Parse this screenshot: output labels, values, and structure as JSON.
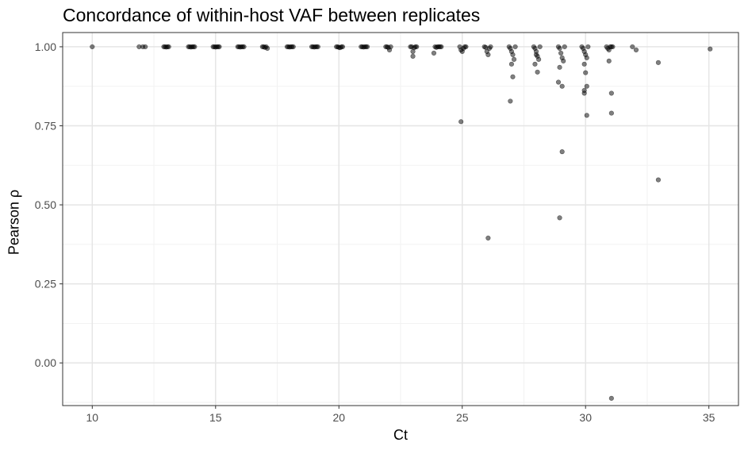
{
  "chart_data": {
    "type": "scatter",
    "title": "Concordance of within-host VAF between replicates",
    "xlabel": "Ct",
    "ylabel": "Pearson ρ",
    "xlim": [
      8.8,
      36.2
    ],
    "ylim": [
      -0.135,
      1.045
    ],
    "x_ticks": [
      10,
      15,
      20,
      25,
      30,
      35
    ],
    "y_ticks": [
      0.0,
      0.25,
      0.5,
      0.75,
      1.0
    ],
    "x_tick_labels": [
      "10",
      "15",
      "20",
      "25",
      "30",
      "35"
    ],
    "y_tick_labels": [
      "0.00",
      "0.25",
      "0.50",
      "0.75",
      "1.00"
    ],
    "grid": true,
    "theme": "bw",
    "point_color": "#000000",
    "point_alpha": 0.5,
    "points": [
      [
        10.0,
        1.0
      ],
      [
        11.9,
        1.0
      ],
      [
        12.05,
        1.0
      ],
      [
        12.15,
        1.0
      ],
      [
        12.95,
        1.0
      ],
      [
        13.0,
        0.999
      ],
      [
        13.05,
        1.0
      ],
      [
        13.1,
        1.0
      ],
      [
        12.9,
        1.0
      ],
      [
        13.9,
        1.0
      ],
      [
        13.95,
        1.0
      ],
      [
        14.0,
        0.999
      ],
      [
        14.05,
        1.0
      ],
      [
        14.1,
        1.0
      ],
      [
        14.15,
        1.0
      ],
      [
        14.9,
        1.0
      ],
      [
        14.95,
        1.0
      ],
      [
        15.0,
        0.999
      ],
      [
        15.05,
        1.0
      ],
      [
        15.1,
        1.0
      ],
      [
        15.15,
        1.0
      ],
      [
        15.9,
        1.0
      ],
      [
        15.95,
        1.0
      ],
      [
        16.0,
        0.999
      ],
      [
        16.05,
        1.0
      ],
      [
        16.1,
        1.0
      ],
      [
        16.15,
        1.0
      ],
      [
        16.9,
        1.0
      ],
      [
        16.95,
        1.0
      ],
      [
        17.0,
        0.998
      ],
      [
        17.05,
        1.0
      ],
      [
        17.1,
        0.995
      ],
      [
        17.9,
        1.0
      ],
      [
        17.95,
        1.0
      ],
      [
        18.0,
        0.999
      ],
      [
        18.05,
        1.0
      ],
      [
        18.1,
        1.0
      ],
      [
        18.15,
        1.0
      ],
      [
        18.9,
        1.0
      ],
      [
        18.95,
        1.0
      ],
      [
        19.0,
        0.999
      ],
      [
        19.05,
        1.0
      ],
      [
        19.1,
        1.0
      ],
      [
        19.15,
        1.0
      ],
      [
        19.9,
        1.0
      ],
      [
        19.95,
        1.0
      ],
      [
        20.0,
        0.998
      ],
      [
        20.05,
        0.997
      ],
      [
        20.1,
        1.0
      ],
      [
        20.15,
        1.0
      ],
      [
        20.9,
        1.0
      ],
      [
        20.95,
        1.0
      ],
      [
        21.0,
        0.999
      ],
      [
        21.05,
        1.0
      ],
      [
        21.1,
        1.0
      ],
      [
        21.15,
        1.0
      ],
      [
        21.9,
        1.0
      ],
      [
        21.95,
        1.0
      ],
      [
        22.0,
        0.998
      ],
      [
        22.05,
        0.99
      ],
      [
        22.1,
        1.0
      ],
      [
        22.9,
        1.0
      ],
      [
        22.95,
        1.0
      ],
      [
        23.0,
        0.985
      ],
      [
        23.05,
        0.997
      ],
      [
        23.1,
        1.0
      ],
      [
        23.15,
        1.0
      ],
      [
        23.0,
        0.97
      ],
      [
        23.9,
        1.0
      ],
      [
        23.95,
        0.998
      ],
      [
        24.0,
        1.0
      ],
      [
        24.05,
        1.0
      ],
      [
        24.1,
        1.0
      ],
      [
        24.15,
        1.0
      ],
      [
        23.85,
        0.98
      ],
      [
        24.9,
        1.0
      ],
      [
        24.95,
        0.99
      ],
      [
        25.0,
        0.985
      ],
      [
        25.05,
        0.995
      ],
      [
        25.1,
        1.0
      ],
      [
        25.15,
        1.0
      ],
      [
        24.95,
        0.763
      ],
      [
        25.9,
        1.0
      ],
      [
        25.95,
        0.998
      ],
      [
        26.0,
        0.985
      ],
      [
        26.05,
        0.975
      ],
      [
        26.1,
        0.995
      ],
      [
        26.15,
        1.0
      ],
      [
        26.05,
        0.395
      ],
      [
        26.9,
        1.0
      ],
      [
        26.95,
        0.995
      ],
      [
        27.0,
        0.985
      ],
      [
        27.05,
        0.975
      ],
      [
        27.1,
        0.96
      ],
      [
        27.15,
        1.0
      ],
      [
        27.0,
        0.945
      ],
      [
        27.05,
        0.905
      ],
      [
        26.95,
        0.828
      ],
      [
        27.9,
        1.0
      ],
      [
        27.95,
        0.995
      ],
      [
        28.0,
        0.985
      ],
      [
        28.05,
        0.97
      ],
      [
        28.1,
        0.96
      ],
      [
        28.15,
        1.0
      ],
      [
        27.95,
        0.945
      ],
      [
        28.05,
        0.92
      ],
      [
        28.0,
        0.975
      ],
      [
        28.9,
        1.0
      ],
      [
        28.95,
        0.995
      ],
      [
        29.0,
        0.98
      ],
      [
        29.05,
        0.965
      ],
      [
        29.1,
        0.955
      ],
      [
        29.15,
        1.0
      ],
      [
        28.95,
        0.935
      ],
      [
        28.9,
        0.888
      ],
      [
        29.05,
        0.875
      ],
      [
        29.05,
        0.668
      ],
      [
        28.95,
        0.459
      ],
      [
        29.85,
        1.0
      ],
      [
        29.9,
        0.995
      ],
      [
        29.95,
        0.985
      ],
      [
        30.0,
        0.975
      ],
      [
        30.05,
        0.965
      ],
      [
        30.1,
        1.0
      ],
      [
        29.95,
        0.945
      ],
      [
        30.0,
        0.918
      ],
      [
        30.05,
        0.875
      ],
      [
        29.95,
        0.862
      ],
      [
        29.95,
        0.853
      ],
      [
        30.05,
        0.783
      ],
      [
        30.85,
        1.0
      ],
      [
        30.9,
        0.995
      ],
      [
        30.95,
        0.99
      ],
      [
        31.0,
        1.0
      ],
      [
        31.05,
        1.0
      ],
      [
        31.1,
        1.0
      ],
      [
        30.95,
        0.955
      ],
      [
        31.05,
        0.853
      ],
      [
        31.05,
        0.79
      ],
      [
        31.05,
        -0.112
      ],
      [
        31.9,
        1.0
      ],
      [
        32.05,
        0.99
      ],
      [
        32.95,
        0.95
      ],
      [
        32.95,
        0.579
      ],
      [
        35.05,
        0.993
      ]
    ]
  }
}
